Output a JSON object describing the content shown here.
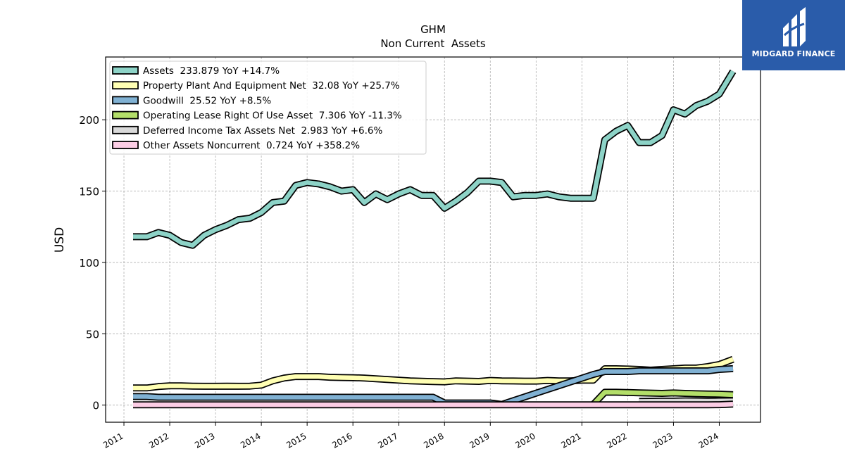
{
  "logo": {
    "text": "MIDGARD FINANCE",
    "background": "#2a5caa"
  },
  "chart_data": {
    "type": "line",
    "title": "GHM",
    "subtitle": "Non Current  Assets",
    "ylabel": "USD",
    "xlabel": "",
    "ylim": [
      -12,
      244
    ],
    "yticks": [
      0,
      50,
      100,
      150,
      200
    ],
    "xlim": [
      2010.6,
      2024.9
    ],
    "xticks": [
      "2011",
      "2012",
      "2013",
      "2014",
      "2015",
      "2016",
      "2017",
      "2018",
      "2019",
      "2020",
      "2021",
      "2022",
      "2023",
      "2024"
    ],
    "grid": true,
    "legend_position": "top-left",
    "series": [
      {
        "name": "Assets",
        "legend_label": "Assets  233.879 YoY +14.7%",
        "color": "#8dd3c7",
        "points": [
          [
            2011.2,
            118
          ],
          [
            2011.5,
            118
          ],
          [
            2011.75,
            121
          ],
          [
            2012.0,
            119
          ],
          [
            2012.25,
            114
          ],
          [
            2012.5,
            112
          ],
          [
            2012.75,
            119
          ],
          [
            2013.0,
            123
          ],
          [
            2013.25,
            126
          ],
          [
            2013.5,
            130
          ],
          [
            2013.75,
            131
          ],
          [
            2014.0,
            135
          ],
          [
            2014.25,
            142
          ],
          [
            2014.5,
            143
          ],
          [
            2014.75,
            154
          ],
          [
            2015.0,
            156
          ],
          [
            2015.25,
            155
          ],
          [
            2015.5,
            153
          ],
          [
            2015.75,
            150
          ],
          [
            2016.0,
            151
          ],
          [
            2016.25,
            142
          ],
          [
            2016.5,
            148
          ],
          [
            2016.75,
            144
          ],
          [
            2017.0,
            148
          ],
          [
            2017.25,
            151
          ],
          [
            2017.5,
            147
          ],
          [
            2017.75,
            147
          ],
          [
            2018.0,
            138
          ],
          [
            2018.25,
            143
          ],
          [
            2018.5,
            149
          ],
          [
            2018.75,
            157
          ],
          [
            2019.0,
            157
          ],
          [
            2019.25,
            156
          ],
          [
            2019.5,
            146
          ],
          [
            2019.75,
            147
          ],
          [
            2020.0,
            147
          ],
          [
            2020.25,
            148
          ],
          [
            2020.5,
            146
          ],
          [
            2020.75,
            145
          ],
          [
            2021.0,
            145
          ],
          [
            2021.25,
            145
          ],
          [
            2021.5,
            186
          ],
          [
            2021.75,
            192
          ],
          [
            2022.0,
            196
          ],
          [
            2022.25,
            184
          ],
          [
            2022.5,
            184
          ],
          [
            2022.75,
            189
          ],
          [
            2023.0,
            207
          ],
          [
            2023.25,
            204
          ],
          [
            2023.5,
            210
          ],
          [
            2023.75,
            213
          ],
          [
            2024.0,
            218
          ],
          [
            2024.3,
            234
          ]
        ]
      },
      {
        "name": "Property Plant And Equipment Net",
        "legend_label": "Property Plant And Equipment Net  32.08 YoY +25.7%",
        "color": "#ffffb3",
        "points": [
          [
            2011.2,
            12
          ],
          [
            2011.5,
            12
          ],
          [
            2011.75,
            13
          ],
          [
            2012.0,
            13.5
          ],
          [
            2012.25,
            13.5
          ],
          [
            2012.5,
            13.3
          ],
          [
            2012.75,
            13.2
          ],
          [
            2013.0,
            13.2
          ],
          [
            2013.25,
            13.3
          ],
          [
            2013.5,
            13.2
          ],
          [
            2013.75,
            13.3
          ],
          [
            2014.0,
            14
          ],
          [
            2014.25,
            17
          ],
          [
            2014.5,
            19
          ],
          [
            2014.75,
            20
          ],
          [
            2015.0,
            20
          ],
          [
            2015.25,
            20
          ],
          [
            2015.5,
            19.5
          ],
          [
            2015.75,
            19.3
          ],
          [
            2016.0,
            19.2
          ],
          [
            2016.25,
            19
          ],
          [
            2016.5,
            18.5
          ],
          [
            2016.75,
            18
          ],
          [
            2017.0,
            17.5
          ],
          [
            2017.25,
            17
          ],
          [
            2017.5,
            16.7
          ],
          [
            2017.75,
            16.5
          ],
          [
            2018.0,
            16.3
          ],
          [
            2018.25,
            17
          ],
          [
            2018.5,
            16.8
          ],
          [
            2018.75,
            16.6
          ],
          [
            2019.0,
            17.3
          ],
          [
            2019.25,
            17
          ],
          [
            2019.5,
            16.9
          ],
          [
            2019.75,
            16.8
          ],
          [
            2020.0,
            16.8
          ],
          [
            2020.25,
            17.3
          ],
          [
            2020.5,
            17
          ],
          [
            2020.75,
            17
          ],
          [
            2021.0,
            17.5
          ],
          [
            2021.25,
            17.5
          ],
          [
            2021.5,
            25.5
          ],
          [
            2021.75,
            25.5
          ],
          [
            2022.0,
            25.3
          ],
          [
            2022.25,
            25
          ],
          [
            2022.5,
            24.5
          ],
          [
            2022.75,
            25
          ],
          [
            2023.0,
            25.5
          ],
          [
            2023.25,
            26
          ],
          [
            2023.5,
            26
          ],
          [
            2023.75,
            27
          ],
          [
            2024.0,
            28.5
          ],
          [
            2024.3,
            32.08
          ]
        ]
      },
      {
        "name": "Goodwill",
        "legend_label": "Goodwill  25.52 YoY +8.5%",
        "color": "#80b1d3",
        "points": [
          [
            2011.2,
            6
          ],
          [
            2011.5,
            6
          ],
          [
            2011.75,
            5.5
          ],
          [
            2012.0,
            5.5
          ],
          [
            2013.0,
            5.5
          ],
          [
            2014.0,
            5.5
          ],
          [
            2015.0,
            5.5
          ],
          [
            2016.0,
            5.5
          ],
          [
            2017.0,
            5.5
          ],
          [
            2017.75,
            5.5
          ],
          [
            2018.0,
            1.5
          ],
          [
            2018.5,
            1.5
          ],
          [
            2019.0,
            1.5
          ],
          [
            2019.25,
            0.5
          ],
          [
            2021.25,
            21.5
          ],
          [
            2021.5,
            23.5
          ],
          [
            2022.0,
            23.5
          ],
          [
            2022.25,
            24
          ],
          [
            2023.5,
            24
          ],
          [
            2023.75,
            24
          ],
          [
            2024.0,
            25
          ],
          [
            2024.3,
            25.52
          ]
        ]
      },
      {
        "name": "Operating Lease Right Of Use Asset",
        "legend_label": "Operating Lease Right Of Use Asset  7.306 YoY -11.3%",
        "color": "#b3de69",
        "points": [
          [
            2021.25,
            0.5
          ],
          [
            2021.5,
            9
          ],
          [
            2021.75,
            9
          ],
          [
            2022.0,
            8.8
          ],
          [
            2022.25,
            8.6
          ],
          [
            2022.5,
            8.4
          ],
          [
            2022.75,
            8.2
          ],
          [
            2023.0,
            8.5
          ],
          [
            2023.25,
            8.2
          ],
          [
            2023.5,
            8
          ],
          [
            2023.75,
            7.8
          ],
          [
            2024.0,
            7.7
          ],
          [
            2024.3,
            7.306
          ]
        ]
      },
      {
        "name": "Deferred Income Tax Assets Net",
        "legend_label": "Deferred Income Tax Assets Net  2.983 YoY +6.6%",
        "color": "#d9d9d9",
        "points": [
          [
            2022.25,
            2.6
          ],
          [
            2022.5,
            2.7
          ],
          [
            2022.75,
            2.8
          ],
          [
            2023.0,
            2.8
          ],
          [
            2023.25,
            3.0
          ],
          [
            2023.5,
            2.9
          ],
          [
            2023.75,
            2.8
          ],
          [
            2024.0,
            2.9
          ],
          [
            2024.3,
            2.983
          ]
        ]
      },
      {
        "name": "Other Assets Noncurrent",
        "legend_label": "Other Assets Noncurrent  0.724 YoY +358.2%",
        "color": "#fccde5",
        "points": [
          [
            2011.2,
            0.2
          ],
          [
            2012.0,
            0.2
          ],
          [
            2013.0,
            0.2
          ],
          [
            2014.0,
            0.2
          ],
          [
            2015.0,
            0.2
          ],
          [
            2016.0,
            0.2
          ],
          [
            2017.0,
            0.2
          ],
          [
            2018.0,
            0.2
          ],
          [
            2019.0,
            0.2
          ],
          [
            2020.0,
            0.2
          ],
          [
            2021.0,
            0.2
          ],
          [
            2022.0,
            0.2
          ],
          [
            2023.0,
            0.2
          ],
          [
            2023.75,
            0.2
          ],
          [
            2024.0,
            0.3
          ],
          [
            2024.3,
            0.724
          ]
        ]
      }
    ]
  }
}
